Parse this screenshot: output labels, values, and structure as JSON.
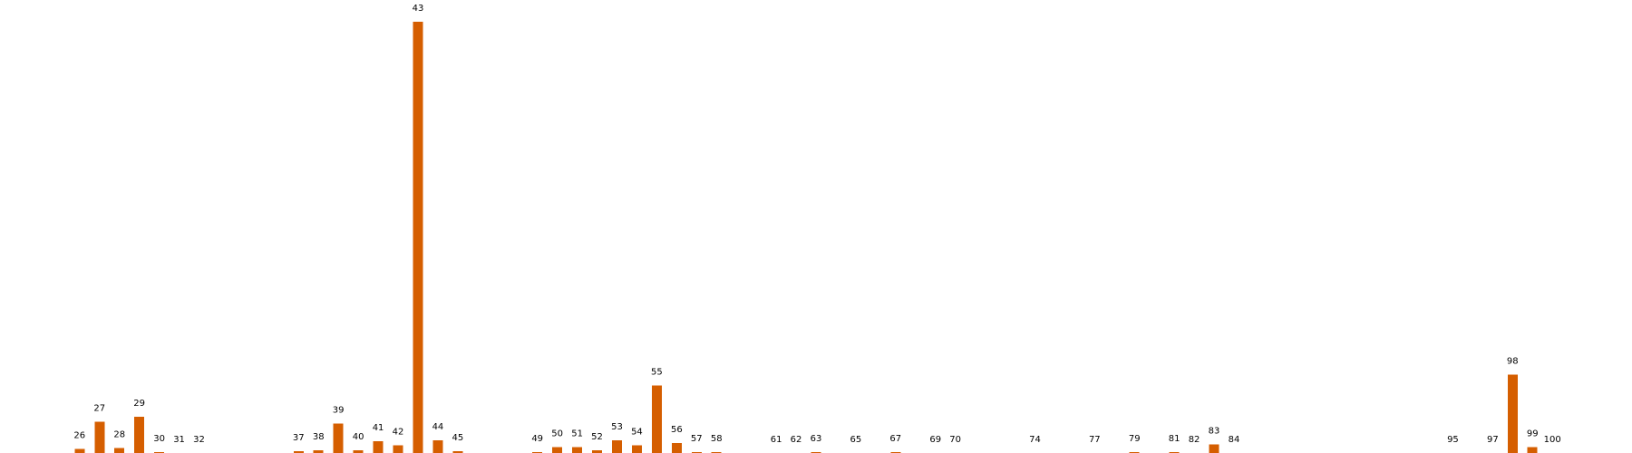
{
  "chart_data": {
    "type": "bar",
    "title": "",
    "xlabel": "",
    "ylabel": "",
    "grid": false,
    "axes_visible": false,
    "bar_color": "#d55e00",
    "x_domain": [
      22,
      104
    ],
    "ylim": [
      0,
      44
    ],
    "categories": [
      "26",
      "27",
      "28",
      "29",
      "30",
      "31",
      "32",
      "37",
      "38",
      "39",
      "40",
      "41",
      "42",
      "43",
      "44",
      "45",
      "49",
      "50",
      "51",
      "52",
      "53",
      "54",
      "55",
      "56",
      "57",
      "58",
      "61",
      "62",
      "63",
      "65",
      "67",
      "69",
      "70",
      "74",
      "77",
      "79",
      "81",
      "82",
      "83",
      "84",
      "95",
      "97",
      "98",
      "99",
      "100"
    ],
    "values": [
      0.4,
      3.2,
      0.5,
      3.7,
      0.1,
      0,
      0,
      0.2,
      0.3,
      3.0,
      0.3,
      1.2,
      0.8,
      44,
      1.3,
      0.2,
      0.1,
      0.6,
      0.6,
      0.3,
      1.3,
      0.8,
      6.9,
      1.0,
      0.1,
      0.1,
      0,
      0,
      0.1,
      0,
      0.1,
      0,
      0,
      0,
      0,
      0.1,
      0.1,
      0,
      0.9,
      0,
      0,
      0,
      8.0,
      0.6,
      0
    ]
  }
}
